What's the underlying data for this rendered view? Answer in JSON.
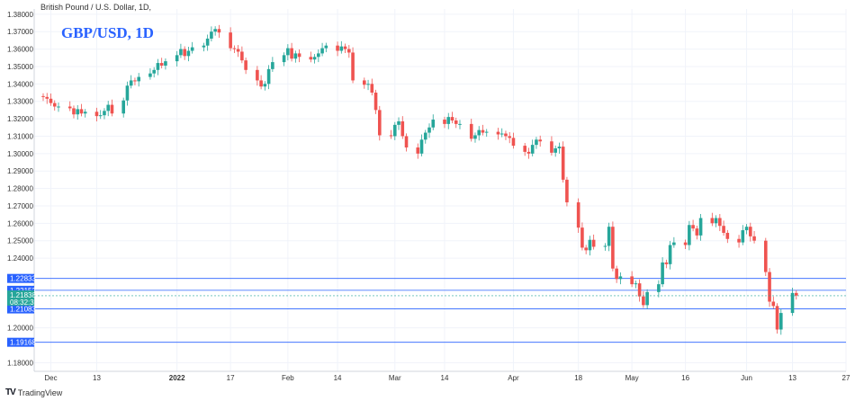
{
  "header": {
    "symbol_line": "British Pound / U.S. Dollar, 1D,"
  },
  "title": "GBP/USD, 1D",
  "footer": {
    "brand": "TradingView"
  },
  "colors": {
    "up": "#26a69a",
    "down": "#ef5350",
    "level": "#2962ff",
    "last": "#26a69a"
  },
  "chart_data": {
    "type": "candlestick",
    "title": "GBP/USD, 1D",
    "ylim": [
      1.175,
      1.383
    ],
    "y_ticks": [
      "1.38000",
      "1.37000",
      "1.36000",
      "1.35000",
      "1.34000",
      "1.33000",
      "1.32000",
      "1.31000",
      "1.30000",
      "1.29000",
      "1.28000",
      "1.27000",
      "1.26000",
      "1.25000",
      "1.24000",
      "1.20000",
      "1.18000"
    ],
    "x_ticks": [
      {
        "label": "Dec",
        "date": "2021-12-01"
      },
      {
        "label": "13",
        "date": "2021-12-13"
      },
      {
        "label": "2022",
        "date": "2022-01-03"
      },
      {
        "label": "17",
        "date": "2022-01-17"
      },
      {
        "label": "Feb",
        "date": "2022-02-01"
      },
      {
        "label": "14",
        "date": "2022-02-14"
      },
      {
        "label": "Mar",
        "date": "2022-03-01"
      },
      {
        "label": "14",
        "date": "2022-03-14"
      },
      {
        "label": "Apr",
        "date": "2022-04-01"
      },
      {
        "label": "18",
        "date": "2022-04-18"
      },
      {
        "label": "May",
        "date": "2022-05-02"
      },
      {
        "label": "16",
        "date": "2022-05-16"
      },
      {
        "label": "Jun",
        "date": "2022-06-01"
      },
      {
        "label": "13",
        "date": "2022-06-13"
      },
      {
        "label": "27",
        "date": "2022-06-27"
      }
    ],
    "levels": [
      {
        "value": 1.22833,
        "label": "1.22833"
      },
      {
        "value": 1.22152,
        "label": "1.22152"
      },
      {
        "value": 1.21083,
        "label": "1.21083"
      },
      {
        "value": 1.19168,
        "label": "1.19168"
      }
    ],
    "last_price": {
      "value": 1.21838,
      "label": "1.21838",
      "countdown": "08:32:31"
    },
    "closes": [
      1.3325,
      1.3315,
      1.329,
      1.327,
      1.327,
      1.326,
      1.3225,
      1.3255,
      1.323,
      1.324,
      1.3215,
      1.322,
      1.3245,
      1.328,
      1.323,
      1.3305,
      1.339,
      1.342,
      1.3415,
      1.344,
      1.346,
      1.348,
      1.352,
      1.3505,
      1.353,
      1.3565,
      1.36,
      1.356,
      1.359,
      1.361,
      1.362,
      1.366,
      1.37,
      1.3715,
      1.3695,
      1.3605,
      1.36,
      1.3585,
      1.3535,
      1.348,
      1.342,
      1.3385,
      1.34,
      1.3485,
      1.3525,
      1.3565,
      1.3605,
      1.3545,
      1.3575,
      1.3555,
      1.354,
      1.3555,
      1.3575,
      1.3605,
      1.362,
      1.359,
      1.3615,
      1.36,
      1.358,
      1.342,
      1.3395,
      1.34,
      1.335,
      1.325,
      1.3105,
      1.31,
      1.3165,
      1.3185,
      1.31,
      1.3035,
      1.3,
      1.308,
      1.312,
      1.315,
      1.3195,
      1.317,
      1.321,
      1.319,
      1.317,
      1.317,
      1.3085,
      1.3105,
      1.3135,
      1.312,
      1.3125,
      1.311,
      1.3115,
      1.31,
      1.309,
      1.3045,
      1.301,
      1.3,
      1.305,
      1.308,
      1.307,
      1.3005,
      1.303,
      1.304,
      1.285,
      1.272,
      1.2575,
      1.246,
      1.2445,
      1.2505,
      1.2465,
      1.247,
      1.258,
      1.234,
      1.228,
      1.2295,
      1.225,
      1.2255,
      1.218,
      1.213,
      1.2205,
      1.225,
      1.2375,
      1.2365,
      1.2475,
      1.249,
      1.2475,
      1.259,
      1.257,
      1.253,
      1.263,
      1.26,
      1.263,
      1.2585,
      1.2545,
      1.251,
      1.249,
      1.256,
      1.258,
      1.2525,
      1.25,
      1.232,
      1.215,
      1.2125,
      1.199,
      1.2085,
      1.22,
      1.2185
    ]
  }
}
